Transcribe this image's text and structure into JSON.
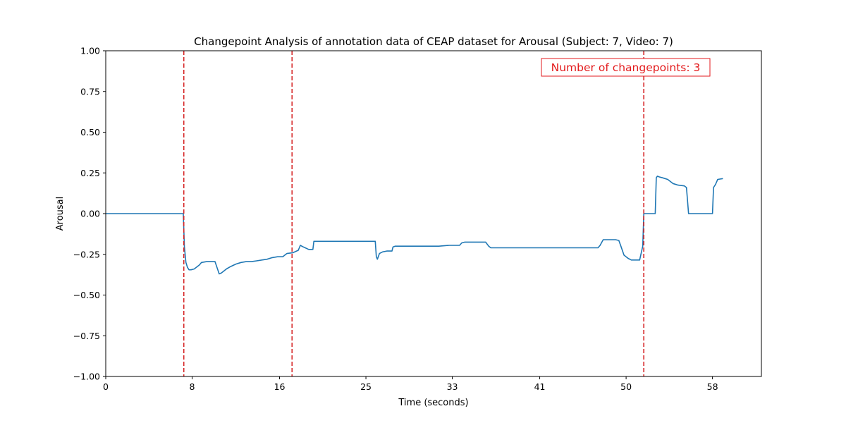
{
  "chart_data": {
    "type": "line",
    "title": "Changepoint Analysis of annotation data of CEAP dataset for Arousal (Subject: 7, Video: 7)",
    "xlabel": "Time (seconds)",
    "ylabel": "Arousal",
    "xlim": [
      0,
      63
    ],
    "ylim": [
      -1.0,
      1.0
    ],
    "x_ticks": [
      0,
      8.3,
      16.7,
      25,
      33.3,
      41.7,
      50,
      58.3
    ],
    "x_tick_labels": [
      "0",
      "8",
      "16",
      "25",
      "33",
      "41",
      "50",
      "58"
    ],
    "y_ticks": [
      -1.0,
      -0.75,
      -0.5,
      -0.25,
      0.0,
      0.25,
      0.5,
      0.75,
      1.0
    ],
    "y_tick_labels": [
      "−1.00",
      "−0.75",
      "−0.50",
      "−0.25",
      "0.00",
      "0.25",
      "0.50",
      "0.75",
      "1.00"
    ],
    "grid": false,
    "series": [
      {
        "color": "#1f77b4",
        "x": [
          0,
          7.45,
          7.55,
          7.7,
          7.85,
          8.0,
          8.2,
          8.5,
          9.0,
          9.2,
          9.7,
          10.0,
          10.5,
          10.9,
          11.1,
          11.3,
          11.6,
          12.0,
          12.5,
          13.0,
          13.5,
          14.0,
          14.5,
          15.0,
          15.5,
          16.0,
          16.5,
          17.0,
          17.3,
          17.4,
          18.0,
          18.5,
          18.7,
          19.0,
          19.5,
          19.9,
          20.0,
          21.0,
          22.0,
          24.0,
          25.0,
          25.9,
          26.0,
          26.1,
          26.3,
          26.6,
          27.0,
          27.5,
          27.6,
          27.8,
          30.0,
          32.0,
          33.0,
          34.0,
          34.2,
          34.5,
          36.0,
          36.5,
          36.8,
          37.0,
          38.0,
          40.0,
          42.0,
          44.0,
          46.0,
          47.3,
          47.5,
          47.8,
          49.0,
          49.3,
          49.5,
          49.8,
          50.2,
          50.5,
          51.0,
          51.3,
          51.6,
          51.7,
          51.8,
          52.8,
          52.9,
          53.0,
          53.2,
          53.5,
          54.0,
          54.5,
          55.0,
          55.6,
          55.8,
          56.0,
          58.0,
          58.3,
          58.4,
          58.6,
          58.8,
          59.3
        ],
        "y": [
          0.0,
          0.0,
          -0.2,
          -0.3,
          -0.33,
          -0.345,
          -0.345,
          -0.34,
          -0.315,
          -0.3,
          -0.295,
          -0.295,
          -0.295,
          -0.37,
          -0.365,
          -0.355,
          -0.34,
          -0.325,
          -0.31,
          -0.3,
          -0.295,
          -0.295,
          -0.29,
          -0.285,
          -0.28,
          -0.27,
          -0.265,
          -0.265,
          -0.25,
          -0.245,
          -0.24,
          -0.225,
          -0.195,
          -0.205,
          -0.22,
          -0.22,
          -0.17,
          -0.17,
          -0.17,
          -0.17,
          -0.17,
          -0.17,
          -0.265,
          -0.28,
          -0.245,
          -0.235,
          -0.23,
          -0.23,
          -0.205,
          -0.2,
          -0.2,
          -0.2,
          -0.195,
          -0.195,
          -0.18,
          -0.175,
          -0.175,
          -0.175,
          -0.2,
          -0.21,
          -0.21,
          -0.21,
          -0.21,
          -0.21,
          -0.21,
          -0.21,
          -0.195,
          -0.16,
          -0.16,
          -0.165,
          -0.2,
          -0.255,
          -0.275,
          -0.285,
          -0.285,
          -0.285,
          -0.2,
          0.0,
          0.0,
          0.0,
          0.22,
          0.23,
          0.225,
          0.22,
          0.21,
          0.185,
          0.175,
          0.17,
          0.16,
          0.0,
          0.0,
          0.0,
          0.16,
          0.18,
          0.21,
          0.215
        ]
      }
    ],
    "changepoints": [
      7.5,
      17.9,
      51.7
    ],
    "changepoint_color": "#d62728",
    "annotation": {
      "text": "Number of changepoints: 3",
      "color": "#e31a1c",
      "position": "top-right"
    }
  }
}
